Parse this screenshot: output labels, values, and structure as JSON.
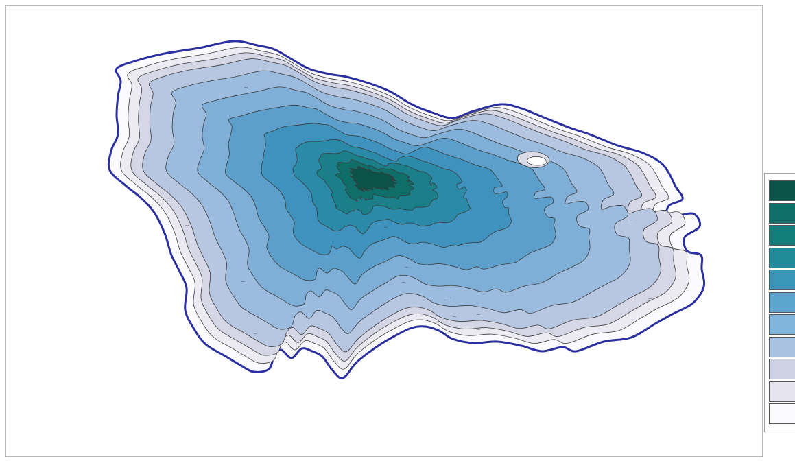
{
  "map": {
    "kind": "bathymetric-contour-map",
    "shoreline_color": "#2b2fa0",
    "contour_line_color": "#3a3a3a",
    "depth_fill_colors": [
      "#fbfbfd",
      "#eceaf2",
      "#d5d6e6",
      "#b7c7e1",
      "#9cbcdf",
      "#7fafd6",
      "#5c9fca",
      "#3f92bd",
      "#2a8aa8",
      "#1a7f88",
      "#0f6e68",
      "#0b5248"
    ],
    "island_present": true
  },
  "legend": {
    "swatch_colors": [
      "#0b5248",
      "#0f6e68",
      "#137d79",
      "#1f8c99",
      "#3a96b8",
      "#5ca5cf",
      "#82b5dc",
      "#a9c2e0",
      "#ccd2e3",
      "#e6e4ee",
      "#fbfafc"
    ]
  }
}
